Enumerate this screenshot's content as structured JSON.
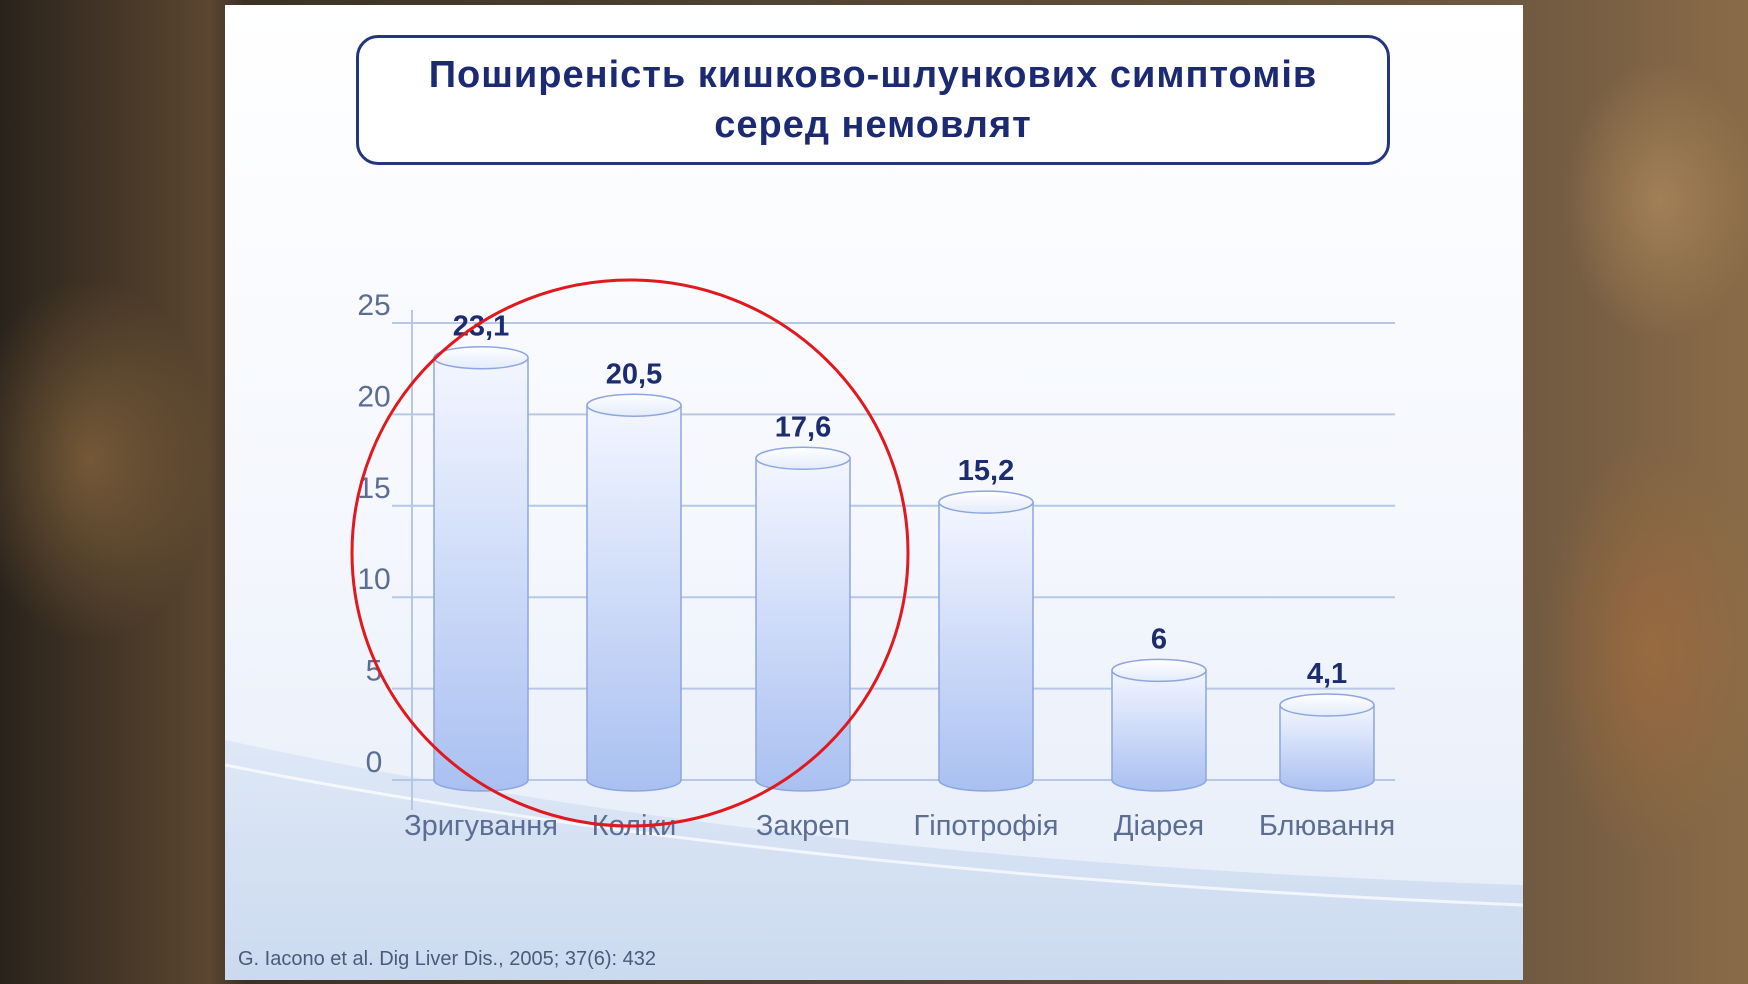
{
  "slide": {
    "title_line1": "Поширеність кишково-шлункових симптомів",
    "title_line2": "серед немовлят",
    "citation": "G. Iacono et al. Dig Liver Dis., 2005; 37(6): 432"
  },
  "colors": {
    "title_border": "#23367d",
    "title_text": "#1b2a72",
    "bar_light": "#f3f6ff",
    "bar_dark": "#a9c0f1",
    "bar_outline": "#8ea6df",
    "gridline": "#b7c7e6",
    "axis_text": "#5b6d93",
    "value_text": "#1c2c6e",
    "highlight_circle": "#e0191f"
  },
  "chart_data": {
    "type": "bar",
    "style": "cylinder",
    "categories": [
      "Зригування",
      "Коліки",
      "Закреп",
      "Гіпотрофія",
      "Діарея",
      "Блювання"
    ],
    "values": [
      23.1,
      20.5,
      17.6,
      15.2,
      6,
      4.1
    ],
    "value_labels": [
      "23,1",
      "20,5",
      "17,6",
      "15,2",
      "6",
      "4,1"
    ],
    "y_ticks": [
      "0",
      "5",
      "10",
      "15",
      "20",
      "25"
    ],
    "ylim": [
      0,
      25
    ],
    "grid": true,
    "legend": "none",
    "annotation": "red circle around Зригування, Коліки, Закреп"
  }
}
